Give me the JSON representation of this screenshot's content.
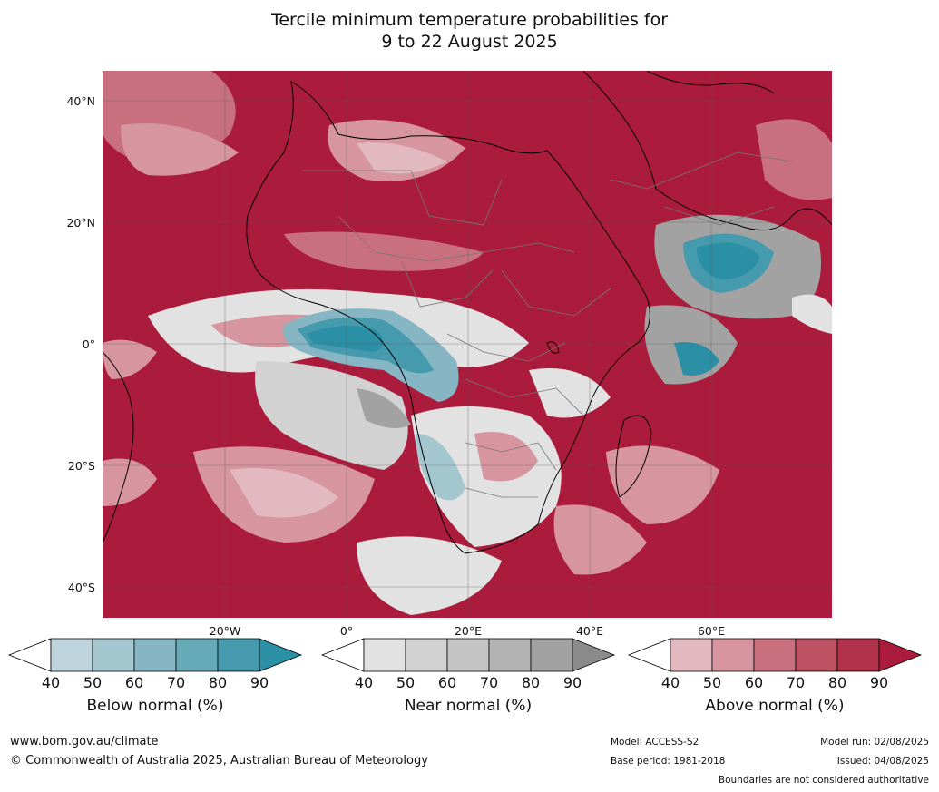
{
  "title": {
    "line1": "Tercile minimum temperature probabilities for",
    "line2": "9 to 22 August 2025"
  },
  "map": {
    "lat_labels": [
      "40°N",
      "20°N",
      "0°",
      "20°S",
      "40°S"
    ],
    "lon_labels": [
      "20°W",
      "0°",
      "20°E",
      "40°E",
      "60°E"
    ]
  },
  "colorbars": [
    {
      "title": "Below normal (%)",
      "ticks": [
        "40",
        "50",
        "60",
        "70",
        "80",
        "90"
      ],
      "colors": [
        "#ffffff",
        "#bdd4dc",
        "#a3c6cf",
        "#86b6c3",
        "#66aab8",
        "#469aae",
        "#2b8fa6"
      ]
    },
    {
      "title": "Near normal (%)",
      "ticks": [
        "40",
        "50",
        "60",
        "70",
        "80",
        "90"
      ],
      "colors": [
        "#ffffff",
        "#e2e2e2",
        "#d2d2d2",
        "#c4c4c4",
        "#b3b3b3",
        "#a2a2a2",
        "#8a8a8a"
      ]
    },
    {
      "title": "Above normal (%)",
      "ticks": [
        "40",
        "50",
        "60",
        "70",
        "80",
        "90"
      ],
      "colors": [
        "#ffffff",
        "#e3b9c1",
        "#d7959f",
        "#c9707e",
        "#bd5362",
        "#b3324b",
        "#ab1c3c"
      ]
    }
  ],
  "footer": {
    "website": "www.bom.gov.au/climate",
    "copyright": "© Commonwealth of Australia 2025, Australian Bureau of Meteorology",
    "model": "Model: ACCESS-S2",
    "base_period": "Base period: 1981-2018",
    "model_run": "Model run: 02/08/2025",
    "issued": "Issued: 04/08/2025",
    "disclaimer": "Boundaries are not considered authoritative"
  }
}
